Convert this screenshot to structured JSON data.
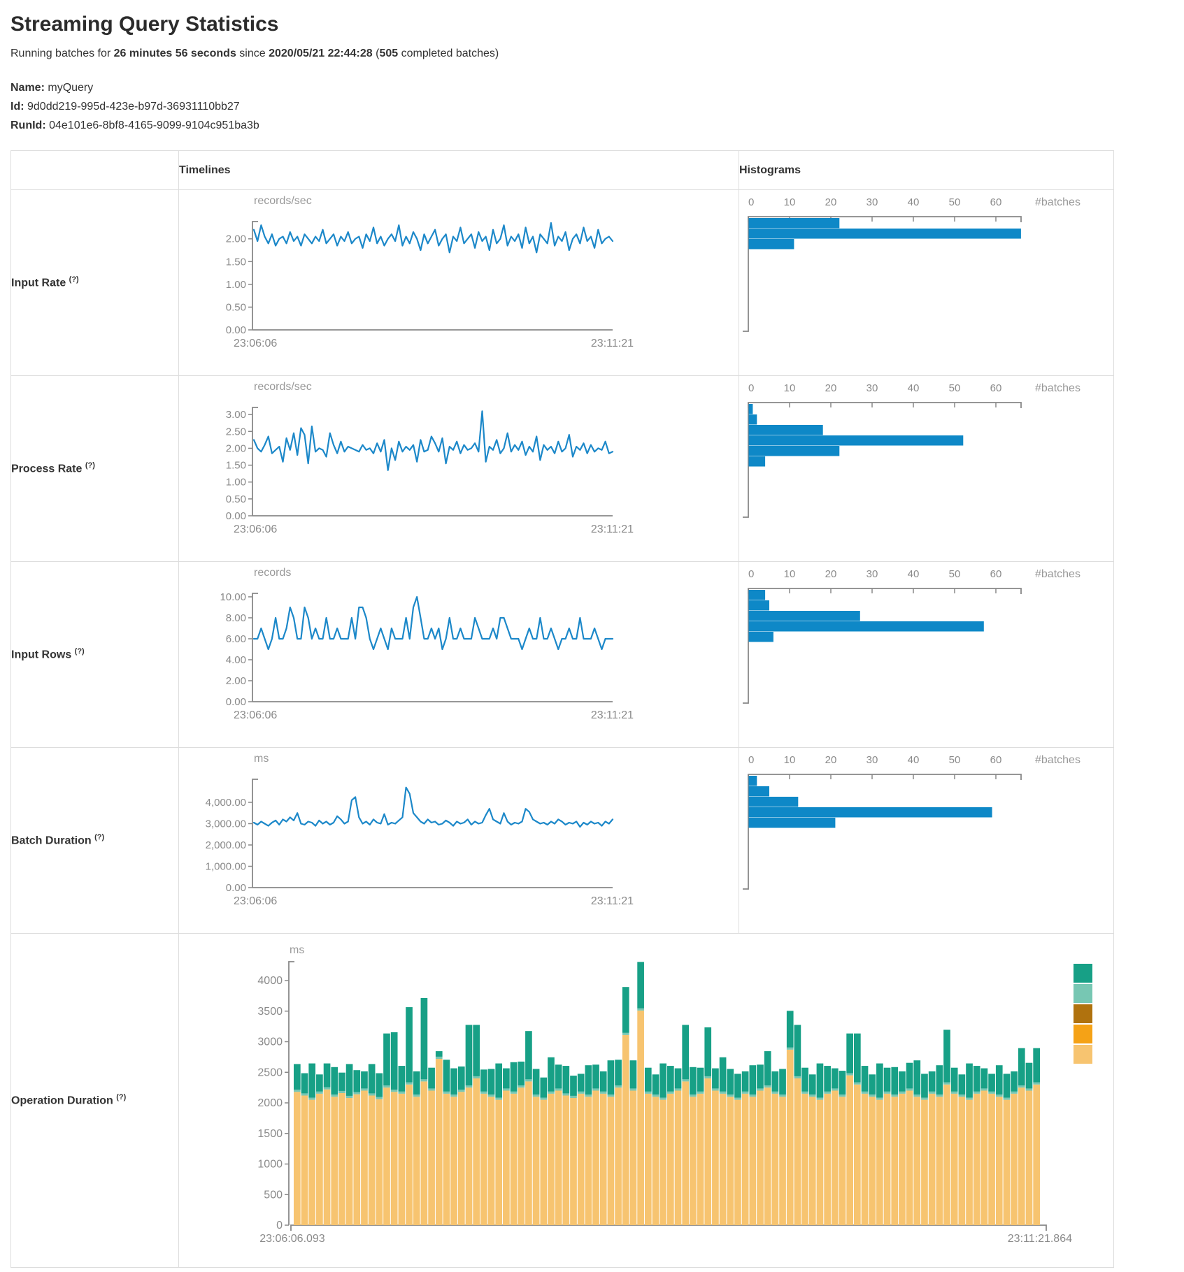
{
  "page": {
    "title": "Streaming Query Statistics",
    "subtitle_segments": [
      {
        "t": "Running batches for ",
        "b": 0
      },
      {
        "t": "26 minutes 56 seconds",
        "b": 1
      },
      {
        "t": " since ",
        "b": 0
      },
      {
        "t": "2020/05/21 22:44:28",
        "b": 1
      },
      {
        "t": " (",
        "b": 0
      },
      {
        "t": "505",
        "b": 1
      },
      {
        "t": " completed batches)",
        "b": 0
      }
    ],
    "name_label": "Name:",
    "name_value": "myQuery",
    "id_label": "Id:",
    "id_value": "9d0dd219-995d-423e-b97d-36931110bb27",
    "runid_label": "RunId:",
    "runid_value": "04e101e6-8bf8-4165-9099-9104c951ba3b"
  },
  "table": {
    "timelines_header": "Timelines",
    "histograms_header": "Histograms"
  },
  "colors": {
    "line_blue": "#1c88c9",
    "hist_blue": "#0e88c7",
    "axis_gray": "#888888",
    "tick_text": "#8a8a8a",
    "green": "#17a086",
    "light_teal": "#77c7b3",
    "brown": "#b0720e",
    "orange": "#f5a216",
    "tan": "#f7c470"
  },
  "chart_data": [
    {
      "label": "Input Rate",
      "help": "(?)",
      "timeline": {
        "type": "line",
        "unit": "records/sec",
        "x_start": "23:06:06",
        "x_end": "23:11:21",
        "ylim": [
          0,
          2.38
        ],
        "yticks": [
          {
            "v": 2,
            "l": "2.00"
          },
          {
            "v": 1.5,
            "l": "1.50"
          },
          {
            "v": 1,
            "l": "1.00"
          },
          {
            "v": 0.5,
            "l": "0.50"
          },
          {
            "v": 0,
            "l": "0.00"
          }
        ],
        "values": [
          2.2,
          1.95,
          2.3,
          2.05,
          1.9,
          2.1,
          1.85,
          2.0,
          2.05,
          1.9,
          2.15,
          1.95,
          2.05,
          1.85,
          2.1,
          2.0,
          1.9,
          2.05,
          1.95,
          2.2,
          1.9,
          2.0,
          2.1,
          1.85,
          2.05,
          1.95,
          2.15,
          1.9,
          2.0,
          2.05,
          1.8,
          2.1,
          1.95,
          2.25,
          1.9,
          2.05,
          1.85,
          2.0,
          2.1,
          1.95,
          2.3,
          1.85,
          2.05,
          1.9,
          2.15,
          2.0,
          1.75,
          2.1,
          1.9,
          2.05,
          2.2,
          1.85,
          2.0,
          2.1,
          1.7,
          2.05,
          1.95,
          2.25,
          1.9,
          2.0,
          2.1,
          1.8,
          2.15,
          1.95,
          2.05,
          1.75,
          2.2,
          1.9,
          2.0,
          2.3,
          1.85,
          2.05,
          1.95,
          2.1,
          1.8,
          2.25,
          1.9,
          2.05,
          1.7,
          2.1,
          2.0,
          1.9,
          2.35,
          1.85,
          2.05,
          1.95,
          2.15,
          1.75,
          2.0,
          2.1,
          1.9,
          2.25,
          1.95,
          2.05,
          1.8,
          2.2,
          1.9,
          2.0,
          2.05,
          1.95
        ]
      },
      "histogram": {
        "type": "bar",
        "orientation": "horizontal",
        "xlabel": "#batches",
        "ticks": [
          0,
          10,
          20,
          30,
          40,
          50,
          60
        ],
        "xlim": [
          0,
          66
        ],
        "values": [
          22,
          66,
          11
        ]
      }
    },
    {
      "label": "Process Rate",
      "help": "(?)",
      "timeline": {
        "type": "line",
        "unit": "records/sec",
        "x_start": "23:06:06",
        "x_end": "23:11:21",
        "ylim": [
          0,
          3.21
        ],
        "yticks": [
          {
            "v": 3,
            "l": "3.00"
          },
          {
            "v": 2.5,
            "l": "2.50"
          },
          {
            "v": 2,
            "l": "2.00"
          },
          {
            "v": 1.5,
            "l": "1.50"
          },
          {
            "v": 1,
            "l": "1.00"
          },
          {
            "v": 0.5,
            "l": "0.50"
          },
          {
            "v": 0,
            "l": "0.00"
          }
        ],
        "values": [
          2.25,
          2.0,
          1.9,
          2.1,
          2.35,
          1.85,
          1.95,
          2.05,
          1.6,
          2.3,
          1.95,
          2.45,
          1.8,
          2.6,
          2.4,
          1.55,
          2.65,
          1.9,
          2.0,
          1.95,
          1.75,
          2.45,
          2.1,
          1.85,
          2.2,
          1.9,
          2.05,
          2.0,
          1.95,
          1.9,
          2.1,
          1.95,
          2.0,
          1.85,
          2.15,
          1.9,
          2.25,
          1.35,
          2.0,
          1.65,
          2.2,
          1.9,
          2.05,
          1.95,
          2.1,
          1.6,
          2.25,
          1.9,
          1.95,
          2.35,
          2.15,
          1.9,
          2.3,
          1.55,
          2.05,
          1.95,
          2.2,
          1.85,
          2.1,
          1.95,
          2.0,
          2.15,
          1.9,
          3.1,
          1.6,
          2.05,
          1.95,
          2.25,
          1.85,
          2.0,
          2.45,
          1.9,
          2.1,
          1.95,
          2.2,
          1.8,
          2.05,
          1.9,
          2.35,
          1.65,
          2.1,
          1.95,
          2.05,
          1.85,
          2.2,
          1.9,
          2.0,
          2.4,
          1.75,
          2.05,
          1.95,
          2.15,
          1.85,
          2.1,
          1.9,
          2.0,
          1.95,
          2.2,
          1.85,
          1.9
        ]
      },
      "histogram": {
        "type": "bar",
        "orientation": "horizontal",
        "xlabel": "#batches",
        "ticks": [
          0,
          10,
          20,
          30,
          40,
          50,
          60
        ],
        "xlim": [
          0,
          66
        ],
        "values": [
          1,
          2,
          18,
          52,
          22,
          4
        ]
      }
    },
    {
      "label": "Input Rows",
      "help": "(?)",
      "timeline": {
        "type": "line",
        "unit": "records",
        "x_start": "23:06:06",
        "x_end": "23:11:21",
        "ylim": [
          0,
          10.33
        ],
        "yticks": [
          {
            "v": 10,
            "l": "10.00"
          },
          {
            "v": 8,
            "l": "8.00"
          },
          {
            "v": 6,
            "l": "6.00"
          },
          {
            "v": 4,
            "l": "4.00"
          },
          {
            "v": 2,
            "l": "2.00"
          },
          {
            "v": 0,
            "l": "0.00"
          }
        ],
        "values": [
          6,
          6,
          7,
          6,
          5,
          6,
          8,
          6,
          6,
          7,
          9,
          8,
          6,
          6,
          9,
          8,
          6,
          7,
          6,
          6,
          8,
          6,
          6,
          7,
          6,
          6,
          6,
          8,
          6,
          9,
          9,
          8,
          6,
          5,
          6,
          7,
          6,
          5,
          7,
          6,
          6,
          6,
          8,
          6,
          9,
          10,
          8,
          6,
          6,
          7,
          6,
          7,
          5,
          6,
          8,
          6,
          6,
          7,
          6,
          6,
          6,
          8,
          7,
          6,
          6,
          6,
          7,
          6,
          8,
          8,
          7,
          6,
          6,
          6,
          5,
          6,
          7,
          6,
          6,
          8,
          6,
          6,
          7,
          6,
          5,
          6,
          6,
          7,
          6,
          6,
          8,
          6,
          6,
          6,
          7,
          6,
          5,
          6,
          6,
          6
        ]
      },
      "histogram": {
        "type": "bar",
        "orientation": "horizontal",
        "xlabel": "#batches",
        "ticks": [
          0,
          10,
          20,
          30,
          40,
          50,
          60
        ],
        "xlim": [
          0,
          66
        ],
        "values": [
          4,
          5,
          27,
          57,
          6
        ]
      }
    },
    {
      "label": "Batch Duration",
      "help": "(?)",
      "timeline": {
        "type": "line",
        "unit": "ms",
        "x_start": "23:06:06",
        "x_end": "23:11:21",
        "ylim": [
          0,
          5082
        ],
        "yticks": [
          {
            "v": 4000,
            "l": "4,000.00"
          },
          {
            "v": 3000,
            "l": "3,000.00"
          },
          {
            "v": 2000,
            "l": "2,000.00"
          },
          {
            "v": 1000,
            "l": "1,000.00"
          },
          {
            "v": 0,
            "l": "0.00"
          }
        ],
        "values": [
          3050,
          2950,
          3100,
          3000,
          2900,
          3050,
          3150,
          2950,
          3200,
          3100,
          3300,
          3150,
          3500,
          3000,
          2950,
          3100,
          3050,
          2900,
          3150,
          3000,
          3100,
          2950,
          3050,
          3350,
          3200,
          3000,
          3100,
          4100,
          4250,
          3300,
          3000,
          3100,
          2950,
          3200,
          3050,
          3000,
          3450,
          2950,
          3050,
          3000,
          3150,
          3300,
          4700,
          4400,
          3500,
          3300,
          3100,
          3000,
          3200,
          3050,
          3100,
          2950,
          3000,
          3150,
          3050,
          2900,
          3100,
          3000,
          3050,
          3200,
          2950,
          3100,
          3000,
          3050,
          3400,
          3700,
          3200,
          3100,
          3000,
          3500,
          3100,
          2950,
          3050,
          3000,
          3100,
          3700,
          3550,
          3200,
          3100,
          3000,
          3050,
          2950,
          3100,
          3000,
          3200,
          3100,
          2950,
          3050,
          3000,
          3100,
          2850,
          3050,
          2950,
          3100,
          3000,
          3050,
          2900,
          3100,
          3000,
          3200
        ]
      },
      "histogram": {
        "type": "bar",
        "orientation": "horizontal",
        "xlabel": "#batches",
        "ticks": [
          0,
          10,
          20,
          30,
          40,
          50,
          60
        ],
        "xlim": [
          0,
          66
        ],
        "values": [
          2,
          5,
          12,
          59,
          21
        ]
      }
    },
    {
      "label": "Operation Duration",
      "help": "(?)",
      "stacked": {
        "type": "bar",
        "stacked": true,
        "unit": "ms",
        "x_start": "23:06:06.093",
        "x_end": "23:11:21.864",
        "ylim": [
          0,
          4770
        ],
        "yticks": [
          {
            "v": 4000,
            "l": "4000"
          },
          {
            "v": 3500,
            "l": "3500"
          },
          {
            "v": 3000,
            "l": "3000"
          },
          {
            "v": 2500,
            "l": "2500"
          },
          {
            "v": 2000,
            "l": "2000"
          },
          {
            "v": 1500,
            "l": "1500"
          },
          {
            "v": 1000,
            "l": "1000"
          },
          {
            "v": 500,
            "l": "500"
          },
          {
            "v": 0,
            "l": "0"
          }
        ],
        "series": [
          {
            "name": "tan-bottom",
            "color": "#f7c470",
            "values": [
              2180,
              2120,
              2050,
              2150,
              2220,
              2100,
              2160,
              2080,
              2140,
              2200,
              2120,
              2060,
              2250,
              2180,
              2150,
              2300,
              2100,
              2350,
              2200,
              2720,
              2150,
              2100,
              2180,
              2250,
              2400,
              2150,
              2100,
              2050,
              2200,
              2150,
              2250,
              2350,
              2100,
              2050,
              2150,
              2200,
              2120,
              2080,
              2150,
              2100,
              2200,
              2150,
              2100,
              2250,
              3110,
              2200,
              3510,
              2150,
              2100,
              2050,
              2150,
              2200,
              2350,
              2100,
              2150,
              2400,
              2200,
              2150,
              2100,
              2050,
              2150,
              2100,
              2200,
              2250,
              2150,
              2100,
              2870,
              2400,
              2150,
              2100,
              2050,
              2150,
              2200,
              2100,
              2450,
              2300,
              2150,
              2100,
              2050,
              2150,
              2100,
              2150,
              2200,
              2100,
              2050,
              2150,
              2100,
              2300,
              2150,
              2100,
              2050,
              2150,
              2200,
              2150,
              2100,
              2050,
              2150,
              2250,
              2200,
              2300
            ]
          },
          {
            "name": "light-teal-middle",
            "color": "#77c7b3",
            "values": 35
          },
          {
            "name": "green-top",
            "color": "#17a086",
            "values": [
              420,
              330,
              560,
              280,
              390,
              450,
              300,
              520,
              360,
              280,
              480,
              390,
              850,
              940,
              420,
              1230,
              380,
              1330,
              340,
              90,
              520,
              430,
              380,
              990,
              840,
              360,
              420,
              560,
              330,
              480,
              390,
              790,
              420,
              330,
              560,
              390,
              450,
              330,
              290,
              480,
              390,
              330,
              560,
              420,
              750,
              460,
              760,
              390,
              330,
              560,
              420,
              330,
              890,
              450,
              390,
              800,
              330,
              560,
              420,
              390,
              330,
              480,
              390,
              560,
              330,
              420,
              600,
              840,
              390,
              330,
              560,
              420,
              330,
              390,
              650,
              800,
              420,
              330,
              560,
              390,
              450,
              330,
              420,
              560,
              390,
              330,
              480,
              860,
              390,
              330,
              560,
              420,
              330,
              290,
              480,
              390,
              330,
              610,
              420,
              560
            ]
          }
        ],
        "legend_colors": [
          "#17a086",
          "#77c7b3",
          "#b0720e",
          "#f5a216",
          "#f7c470"
        ]
      }
    }
  ]
}
